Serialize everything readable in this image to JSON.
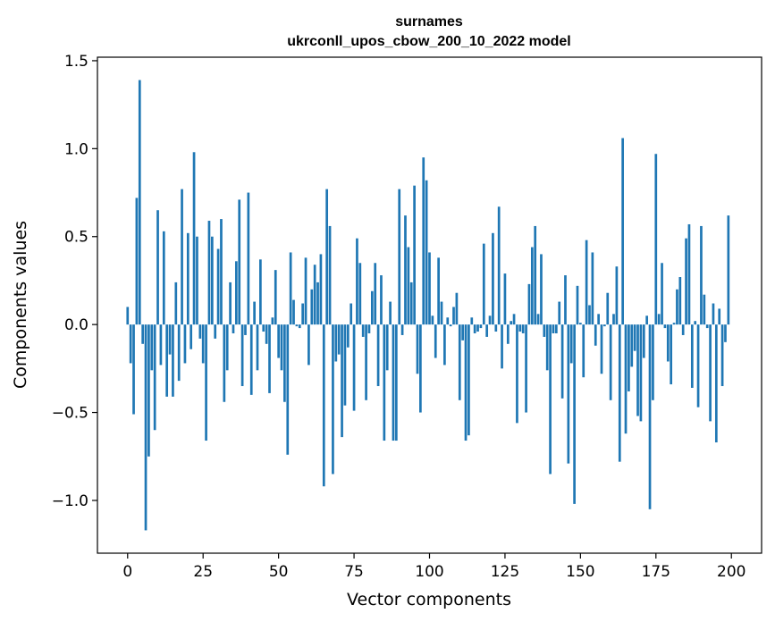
{
  "chart_data": {
    "type": "bar",
    "title": "surnames",
    "subtitle": "ukrconll_upos_cbow_200_10_2022 model",
    "xlabel": "Vector components",
    "ylabel": "Components values",
    "xlim": [
      -10,
      210
    ],
    "ylim": [
      -1.3,
      1.52
    ],
    "xticks": [
      0,
      25,
      50,
      75,
      100,
      125,
      150,
      175,
      200
    ],
    "yticks": [
      -1.0,
      -0.5,
      0.0,
      0.5,
      1.0,
      1.5
    ],
    "xtick_labels": [
      "0",
      "25",
      "50",
      "75",
      "100",
      "125",
      "150",
      "175",
      "200"
    ],
    "ytick_labels": [
      "−1.0",
      "−0.5",
      "0.0",
      "0.5",
      "1.0",
      "1.5"
    ],
    "bar_color": "#1f77b4",
    "grid": false,
    "legend": "none",
    "x": [
      0,
      1,
      2,
      3,
      4,
      5,
      6,
      7,
      8,
      9,
      10,
      11,
      12,
      13,
      14,
      15,
      16,
      17,
      18,
      19,
      20,
      21,
      22,
      23,
      24,
      25,
      26,
      27,
      28,
      29,
      30,
      31,
      32,
      33,
      34,
      35,
      36,
      37,
      38,
      39,
      40,
      41,
      42,
      43,
      44,
      45,
      46,
      47,
      48,
      49,
      50,
      51,
      52,
      53,
      54,
      55,
      56,
      57,
      58,
      59,
      60,
      61,
      62,
      63,
      64,
      65,
      66,
      67,
      68,
      69,
      70,
      71,
      72,
      73,
      74,
      75,
      76,
      77,
      78,
      79,
      80,
      81,
      82,
      83,
      84,
      85,
      86,
      87,
      88,
      89,
      90,
      91,
      92,
      93,
      94,
      95,
      96,
      97,
      98,
      99,
      100,
      101,
      102,
      103,
      104,
      105,
      106,
      107,
      108,
      109,
      110,
      111,
      112,
      113,
      114,
      115,
      116,
      117,
      118,
      119,
      120,
      121,
      122,
      123,
      124,
      125,
      126,
      127,
      128,
      129,
      130,
      131,
      132,
      133,
      134,
      135,
      136,
      137,
      138,
      139,
      140,
      141,
      142,
      143,
      144,
      145,
      146,
      147,
      148,
      149,
      150,
      151,
      152,
      153,
      154,
      155,
      156,
      157,
      158,
      159,
      160,
      161,
      162,
      163,
      164,
      165,
      166,
      167,
      168,
      169,
      170,
      171,
      172,
      173,
      174,
      175,
      176,
      177,
      178,
      179,
      180,
      181,
      182,
      183,
      184,
      185,
      186,
      187,
      188,
      189,
      190,
      191,
      192,
      193,
      194,
      195,
      196,
      197,
      198,
      199
    ],
    "values": [
      0.1,
      -0.22,
      -0.51,
      0.72,
      1.39,
      -0.11,
      -1.17,
      -0.75,
      -0.26,
      -0.6,
      0.65,
      -0.23,
      0.53,
      -0.41,
      -0.17,
      -0.41,
      0.24,
      -0.32,
      0.77,
      -0.22,
      0.52,
      -0.14,
      0.98,
      0.5,
      -0.08,
      -0.22,
      -0.66,
      0.59,
      0.5,
      -0.08,
      0.43,
      0.6,
      -0.44,
      -0.26,
      0.24,
      -0.05,
      0.36,
      0.71,
      -0.35,
      -0.06,
      0.75,
      -0.4,
      0.13,
      -0.26,
      0.37,
      -0.04,
      -0.11,
      -0.39,
      0.04,
      0.31,
      -0.19,
      -0.26,
      -0.44,
      -0.74,
      0.41,
      0.14,
      -0.01,
      -0.02,
      0.12,
      0.38,
      -0.23,
      0.2,
      0.34,
      0.24,
      0.4,
      -0.92,
      0.77,
      0.56,
      -0.85,
      -0.21,
      -0.17,
      -0.64,
      -0.46,
      -0.13,
      0.12,
      -0.49,
      0.49,
      0.35,
      -0.07,
      -0.43,
      -0.05,
      0.19,
      0.35,
      -0.35,
      0.28,
      -0.66,
      -0.26,
      0.13,
      -0.66,
      -0.66,
      0.77,
      -0.06,
      0.62,
      0.44,
      0.24,
      0.79,
      -0.28,
      -0.5,
      0.95,
      0.82,
      0.41,
      0.05,
      -0.19,
      0.38,
      0.13,
      -0.23,
      0.04,
      -0.01,
      0.1,
      0.18,
      -0.43,
      -0.09,
      -0.66,
      -0.63,
      0.04,
      -0.05,
      -0.04,
      -0.02,
      0.46,
      -0.07,
      0.05,
      0.52,
      -0.04,
      0.67,
      -0.25,
      0.29,
      -0.11,
      0.02,
      0.06,
      -0.56,
      -0.04,
      -0.05,
      -0.5,
      0.23,
      0.44,
      0.56,
      0.06,
      0.4,
      -0.07,
      -0.26,
      -0.85,
      -0.05,
      -0.05,
      0.13,
      -0.42,
      0.28,
      -0.79,
      -0.22,
      -1.02,
      0.22,
      0.01,
      -0.3,
      0.48,
      0.11,
      0.41,
      -0.12,
      0.06,
      -0.28,
      -0.01,
      0.18,
      -0.43,
      0.06,
      0.33,
      -0.78,
      1.06,
      -0.62,
      -0.38,
      -0.24,
      -0.15,
      -0.52,
      -0.55,
      -0.19,
      0.05,
      -1.05,
      -0.43,
      0.97,
      0.06,
      0.35,
      -0.02,
      -0.21,
      -0.34,
      0.01,
      0.2,
      0.27,
      -0.06,
      0.49,
      0.57,
      -0.36,
      0.02,
      -0.47,
      0.56,
      0.17,
      -0.02,
      -0.55,
      0.12,
      -0.67,
      0.09,
      -0.35,
      -0.1,
      0.62
    ]
  }
}
